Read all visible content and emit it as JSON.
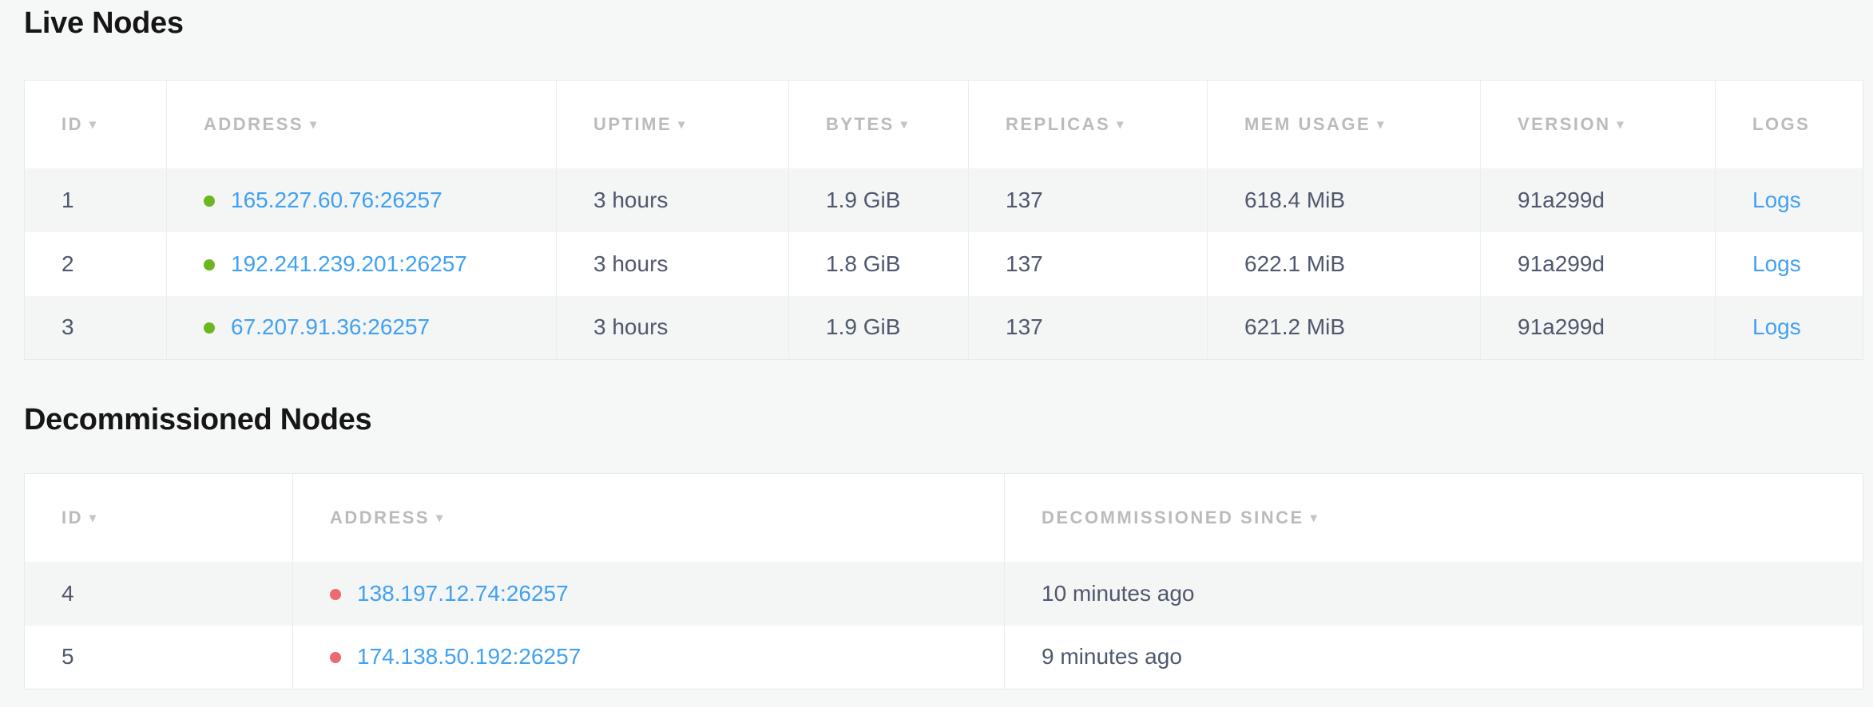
{
  "icons": {
    "sort_arrow": "▾"
  },
  "colors": {
    "link": "#41a1f2",
    "live_dot": "#6db521",
    "decommissioned_dot": "#ed6a72",
    "page_background": "#f6f7f7",
    "row_stripe": "#f4f5f5",
    "header_text": "#b9bbbd",
    "cell_text": "#50586e"
  },
  "live_nodes": {
    "title": "Live Nodes",
    "columns": [
      {
        "label": "ID",
        "sortable": true
      },
      {
        "label": "ADDRESS",
        "sortable": true
      },
      {
        "label": "UPTIME",
        "sortable": true
      },
      {
        "label": "BYTES",
        "sortable": true
      },
      {
        "label": "REPLICAS",
        "sortable": true
      },
      {
        "label": "MEM USAGE",
        "sortable": true
      },
      {
        "label": "VERSION",
        "sortable": true
      },
      {
        "label": "LOGS",
        "sortable": false
      }
    ],
    "rows": [
      {
        "id": "1",
        "status": "live",
        "address": "165.227.60.76:26257",
        "uptime": "3 hours",
        "bytes": "1.9 GiB",
        "replicas": "137",
        "mem_usage": "618.4 MiB",
        "version": "91a299d",
        "logs_label": "Logs"
      },
      {
        "id": "2",
        "status": "live",
        "address": "192.241.239.201:26257",
        "uptime": "3 hours",
        "bytes": "1.8 GiB",
        "replicas": "137",
        "mem_usage": "622.1 MiB",
        "version": "91a299d",
        "logs_label": "Logs"
      },
      {
        "id": "3",
        "status": "live",
        "address": "67.207.91.36:26257",
        "uptime": "3 hours",
        "bytes": "1.9 GiB",
        "replicas": "137",
        "mem_usage": "621.2 MiB",
        "version": "91a299d",
        "logs_label": "Logs"
      }
    ]
  },
  "decommissioned_nodes": {
    "title": "Decommissioned Nodes",
    "columns": [
      {
        "label": "ID",
        "sortable": true
      },
      {
        "label": "ADDRESS",
        "sortable": true
      },
      {
        "label": "DECOMMISSIONED SINCE",
        "sortable": true
      }
    ],
    "rows": [
      {
        "id": "4",
        "status": "decommissioned",
        "address": "138.197.12.74:26257",
        "since": "10 minutes ago"
      },
      {
        "id": "5",
        "status": "decommissioned",
        "address": "174.138.50.192:26257",
        "since": "9 minutes ago"
      }
    ]
  }
}
